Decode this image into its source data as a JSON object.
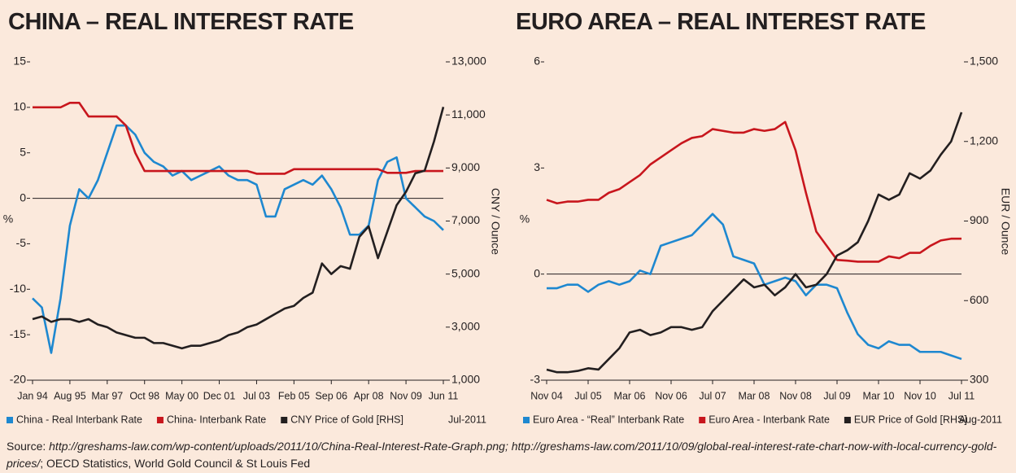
{
  "chart_data": [
    {
      "type": "line",
      "title": "CHINA – REAL INTEREST RATE",
      "ylabel": "%",
      "y2label": "CNY / Ounce",
      "date_note": "Jul-2011",
      "categories": [
        "Jan 94",
        null,
        null,
        null,
        "Aug 95",
        null,
        null,
        null,
        "Mar 97",
        null,
        null,
        null,
        "Oct 98",
        null,
        null,
        null,
        "May 00",
        null,
        null,
        null,
        "Dec 01",
        null,
        null,
        null,
        "Jul 03",
        null,
        null,
        null,
        "Feb 05",
        null,
        null,
        null,
        "Sep 06",
        null,
        null,
        null,
        "Apr 08",
        null,
        null,
        null,
        "Nov 09",
        null,
        null,
        null,
        "Jun 11"
      ],
      "ylim": [
        -20,
        15
      ],
      "yticks": [
        -20,
        -15,
        -10,
        -5,
        0,
        5,
        10,
        15
      ],
      "y2lim": [
        1000,
        13000
      ],
      "y2ticks": [
        {
          "value": 1000,
          "label": "1,000"
        },
        {
          "value": 3000,
          "label": "3,000"
        },
        {
          "value": 5000,
          "label": "5,000"
        },
        {
          "value": 7000,
          "label": "7,000"
        },
        {
          "value": 9000,
          "label": "9,000"
        },
        {
          "value": 11000,
          "label": "11,000"
        },
        {
          "value": 13000,
          "label": "13,000"
        }
      ],
      "series": [
        {
          "name": "China - Real Interbank Rate",
          "color": "#1e88d0",
          "values": [
            -11,
            -12,
            -17,
            -11,
            -3,
            1,
            0,
            2,
            5,
            8,
            8,
            7,
            5,
            4,
            3.5,
            2.5,
            3,
            2,
            2.5,
            3,
            3.5,
            2.5,
            2,
            2,
            1.5,
            -2,
            -2,
            1,
            1.5,
            2,
            1.5,
            2.5,
            1,
            -1,
            -4,
            -4,
            -3,
            2,
            4,
            4.5,
            0,
            -1,
            -2,
            -2.5,
            -3.5
          ]
        },
        {
          "name": "China- Interbank Rate",
          "color": "#c8161d",
          "values": [
            10,
            10,
            10,
            10,
            10.5,
            10.5,
            9,
            9,
            9,
            9,
            8,
            5,
            3,
            3,
            3,
            3,
            3,
            3,
            3,
            3,
            3,
            3,
            3,
            3,
            2.7,
            2.7,
            2.7,
            2.7,
            3.2,
            3.2,
            3.2,
            3.2,
            3.2,
            3.2,
            3.2,
            3.2,
            3.2,
            3.2,
            2.8,
            2.8,
            2.8,
            3,
            3,
            3,
            3
          ]
        },
        {
          "name": "CNY Price of Gold [RHS]",
          "color": "#231f20",
          "axis": "y2",
          "values": [
            3300,
            3400,
            3200,
            3300,
            3300,
            3200,
            3300,
            3100,
            3000,
            2800,
            2700,
            2600,
            2600,
            2400,
            2400,
            2300,
            2200,
            2300,
            2300,
            2400,
            2500,
            2700,
            2800,
            3000,
            3100,
            3300,
            3500,
            3700,
            3800,
            4100,
            4300,
            5400,
            5000,
            5300,
            5200,
            6400,
            6800,
            5600,
            6600,
            7600,
            8100,
            8800,
            8900,
            10000,
            11300
          ]
        }
      ]
    },
    {
      "type": "line",
      "title": "EURO AREA – REAL INTEREST RATE",
      "ylabel": "%",
      "y2label": "EUR / Ounce",
      "date_note": "Aug-2011",
      "categories": [
        "Nov 04",
        null,
        null,
        null,
        "Jul 05",
        null,
        null,
        null,
        "Mar 06",
        null,
        null,
        null,
        "Nov 06",
        null,
        null,
        null,
        "Jul 07",
        null,
        null,
        null,
        "Mar 08",
        null,
        null,
        null,
        "Nov 08",
        null,
        null,
        null,
        "Jul 09",
        null,
        null,
        null,
        "Mar 10",
        null,
        null,
        null,
        "Nov 10",
        null,
        null,
        null,
        "Jul 11"
      ],
      "ylim": [
        -3,
        6
      ],
      "yticks": [
        -3,
        0,
        3,
        6
      ],
      "y2lim": [
        300,
        1500
      ],
      "y2ticks": [
        300,
        600,
        900,
        {
          "value": 1200,
          "label": "1,200"
        },
        {
          "value": 1500,
          "label": "1,500"
        }
      ],
      "series": [
        {
          "name": "Euro Area - “Real” Interbank Rate",
          "color": "#1e88d0",
          "values": [
            -0.4,
            -0.4,
            -0.3,
            -0.3,
            -0.5,
            -0.3,
            -0.2,
            -0.3,
            -0.2,
            0.1,
            0,
            0.8,
            0.9,
            1,
            1.1,
            1.4,
            1.7,
            1.4,
            0.5,
            0.4,
            0.3,
            -0.3,
            -0.2,
            -0.1,
            -0.2,
            -0.6,
            -0.3,
            -0.3,
            -0.4,
            -1.1,
            -1.7,
            -2,
            -2.1,
            -1.9,
            -2,
            -2,
            -2.2,
            -2.2,
            -2.2,
            -2.3,
            -2.4
          ]
        },
        {
          "name": "Euro Area - Interbank Rate",
          "color": "#c8161d",
          "values": [
            2.1,
            2,
            2.05,
            2.05,
            2.1,
            2.1,
            2.3,
            2.4,
            2.6,
            2.8,
            3.1,
            3.3,
            3.5,
            3.7,
            3.85,
            3.9,
            4.1,
            4.05,
            4,
            4,
            4.1,
            4.05,
            4.1,
            4.3,
            3.5,
            2.3,
            1.2,
            0.8,
            0.4,
            0.38,
            0.35,
            0.35,
            0.35,
            0.5,
            0.45,
            0.6,
            0.6,
            0.8,
            0.95,
            1,
            1
          ]
        },
        {
          "name": "EUR Price of Gold [RHS]",
          "color": "#231f20",
          "axis": "y2",
          "values": [
            340,
            330,
            330,
            335,
            345,
            340,
            380,
            420,
            480,
            490,
            470,
            480,
            500,
            500,
            490,
            500,
            560,
            600,
            640,
            680,
            650,
            660,
            620,
            650,
            700,
            650,
            660,
            700,
            770,
            790,
            820,
            900,
            1000,
            980,
            1000,
            1080,
            1060,
            1090,
            1150,
            1200,
            1310
          ]
        }
      ]
    }
  ],
  "source": {
    "label": "Source:",
    "links": "http://greshams-law.com/wp-content/uploads/2011/10/China-Real-Interest-Rate-Graph.png; http://greshams-law.com/2011/10/09/global-real-interest-rate-chart-now-with-local-currency-gold-prices/",
    "rest": "; OECD Statistics, World Gold Council & St Louis Fed"
  }
}
